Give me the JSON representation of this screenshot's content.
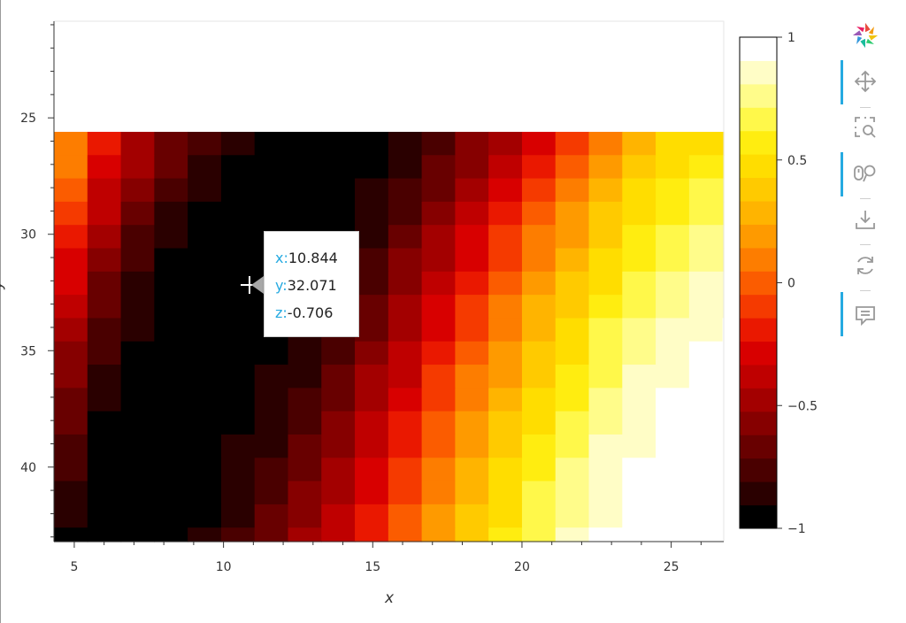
{
  "chart_data": {
    "type": "heatmap",
    "title": "",
    "xlabel": "x",
    "ylabel": "y",
    "x_ticks": [
      5,
      10,
      15,
      20,
      25
    ],
    "y_ticks": [
      25,
      30,
      35,
      40
    ],
    "xlim": [
      4.32,
      26.76
    ],
    "ylim": [
      20.85,
      43.2
    ],
    "x_start": 4.32,
    "x_step": 1.12,
    "y_start": 25.6,
    "y_step": 1,
    "z_range": [
      -1,
      1
    ],
    "colorbar_ticks": [
      "1",
      "0.5",
      "0",
      "−0.5",
      "−1"
    ],
    "colorbar_tick_values": [
      1,
      0.5,
      0,
      -0.5,
      -1
    ],
    "colorbar_levels": 21,
    "colormap": [
      "#000000",
      "#2a0000",
      "#4a0000",
      "#680000",
      "#860000",
      "#a30000",
      "#bf0000",
      "#d80000",
      "#ea1800",
      "#f53a00",
      "#fb5c00",
      "#fd7d00",
      "#fe9a00",
      "#ffb400",
      "#ffca00",
      "#ffdd00",
      "#ffed10",
      "#fff84a",
      "#fffc8a",
      "#fffdc6",
      "#ffffff"
    ],
    "z_rows": [
      [
        0.13,
        -0.15,
        -0.44,
        -0.62,
        -0.8,
        -0.9,
        -0.98,
        -1.0,
        -1.0,
        -0.97,
        -0.88,
        -0.76,
        -0.61,
        -0.44,
        -0.25,
        -0.05,
        0.13,
        0.3,
        0.43,
        0.5,
        0.5
      ],
      [
        0.05,
        -0.25,
        -0.52,
        -0.7,
        -0.85,
        -0.94,
        -1.0,
        -1.0,
        -1.0,
        -0.94,
        -0.85,
        -0.7,
        -0.54,
        -0.36,
        -0.17,
        0.02,
        0.2,
        0.36,
        0.49,
        0.56,
        0.57
      ],
      [
        -0.03,
        -0.34,
        -0.6,
        -0.77,
        -0.9,
        -0.98,
        -1.0,
        -1.0,
        -0.98,
        -0.9,
        -0.79,
        -0.63,
        -0.47,
        -0.28,
        -0.09,
        0.1,
        0.27,
        0.43,
        0.55,
        0.62,
        0.64
      ],
      [
        -0.1,
        -0.42,
        -0.66,
        -0.82,
        -0.94,
        -1.0,
        -1.0,
        -1.0,
        -0.95,
        -0.86,
        -0.73,
        -0.57,
        -0.4,
        -0.21,
        -0.02,
        0.17,
        0.34,
        0.49,
        0.6,
        0.67,
        0.69
      ],
      [
        -0.18,
        -0.5,
        -0.72,
        -0.87,
        -0.97,
        -1.0,
        -1.0,
        -0.99,
        -0.92,
        -0.82,
        -0.67,
        -0.5,
        -0.33,
        -0.14,
        0.05,
        0.23,
        0.4,
        0.55,
        0.65,
        0.72,
        0.74
      ],
      [
        -0.26,
        -0.57,
        -0.77,
        -0.91,
        -0.99,
        -1.0,
        -1.0,
        -0.97,
        -0.89,
        -0.77,
        -0.61,
        -0.44,
        -0.26,
        -0.07,
        0.12,
        0.3,
        0.46,
        0.6,
        0.7,
        0.77,
        0.79
      ],
      [
        -0.33,
        -0.63,
        -0.82,
        -0.94,
        -1.0,
        -1.0,
        -0.99,
        -0.94,
        -0.85,
        -0.72,
        -0.56,
        -0.38,
        -0.19,
        0.0,
        0.18,
        0.36,
        0.52,
        0.65,
        0.75,
        0.81,
        0.84
      ],
      [
        -0.4,
        -0.69,
        -0.86,
        -0.97,
        -1.0,
        -1.0,
        -0.97,
        -0.91,
        -0.81,
        -0.67,
        -0.5,
        -0.32,
        -0.13,
        0.06,
        0.24,
        0.42,
        0.57,
        0.69,
        0.79,
        0.85,
        0.88
      ],
      [
        -0.47,
        -0.74,
        -0.9,
        -0.99,
        -1.0,
        -1.0,
        -0.95,
        -0.88,
        -0.77,
        -0.62,
        -0.45,
        -0.26,
        -0.07,
        0.12,
        0.3,
        0.47,
        0.62,
        0.74,
        0.83,
        0.88,
        0.92
      ],
      [
        -0.54,
        -0.79,
        -0.94,
        -1.0,
        -1.0,
        -0.99,
        -0.93,
        -0.85,
        -0.73,
        -0.57,
        -0.39,
        -0.2,
        -0.01,
        0.18,
        0.36,
        0.52,
        0.66,
        0.78,
        0.86,
        0.92,
        0.95
      ],
      [
        -0.6,
        -0.83,
        -0.96,
        -1.0,
        -1.0,
        -0.97,
        -0.9,
        -0.81,
        -0.68,
        -0.52,
        -0.34,
        -0.14,
        0.05,
        0.23,
        0.41,
        0.57,
        0.7,
        0.81,
        0.89,
        0.94,
        0.97
      ],
      [
        -0.65,
        -0.87,
        -0.99,
        -1.0,
        -1.0,
        -0.95,
        -0.87,
        -0.77,
        -0.63,
        -0.47,
        -0.28,
        -0.09,
        0.1,
        0.29,
        0.46,
        0.61,
        0.74,
        0.84,
        0.92,
        0.97,
        0.99
      ],
      [
        -0.7,
        -0.91,
        -1.0,
        -1.0,
        -0.99,
        -0.92,
        -0.84,
        -0.73,
        -0.59,
        -0.42,
        -0.23,
        -0.04,
        0.15,
        0.34,
        0.5,
        0.65,
        0.78,
        0.87,
        0.94,
        0.98,
        1.0
      ],
      [
        -0.75,
        -0.94,
        -1.0,
        -1.0,
        -0.97,
        -0.9,
        -0.81,
        -0.69,
        -0.54,
        -0.37,
        -0.18,
        0.01,
        0.2,
        0.38,
        0.55,
        0.69,
        0.81,
        0.9,
        0.96,
        1.0,
        1.0
      ],
      [
        -0.8,
        -0.97,
        -1.0,
        -1.0,
        -0.95,
        -0.87,
        -0.77,
        -0.65,
        -0.5,
        -0.32,
        -0.13,
        0.06,
        0.25,
        0.43,
        0.59,
        0.73,
        0.84,
        0.92,
        0.98,
        1.0,
        1.0
      ],
      [
        -0.84,
        -0.99,
        -1.0,
        -1.0,
        -0.93,
        -0.85,
        -0.74,
        -0.61,
        -0.45,
        -0.27,
        -0.08,
        0.11,
        0.3,
        0.47,
        0.63,
        0.76,
        0.87,
        0.95,
        0.99,
        1.0,
        1.0
      ],
      [
        -0.88,
        -1.0,
        -1.0,
        -0.99,
        -0.91,
        -0.82,
        -0.7,
        -0.56,
        -0.41,
        -0.23,
        -0.03,
        0.16,
        0.34,
        0.51,
        0.66,
        0.79,
        0.89,
        0.96,
        1.0,
        1.0,
        1.0
      ],
      [
        -0.91,
        -1.0,
        -1.0,
        -0.97,
        -0.89,
        -0.79,
        -0.67,
        -0.52,
        -0.36,
        -0.18,
        0.01,
        0.2,
        0.38,
        0.55,
        0.7,
        0.82,
        0.91,
        0.98,
        1.0,
        1.0,
        1.0
      ]
    ]
  },
  "tooltip": {
    "x_key": "x:",
    "x_val": "10.844",
    "y_key": "y:",
    "y_val": "32.071",
    "z_key": "z:",
    "z_val": "-0.706"
  },
  "toolbar": {
    "tools": [
      "bokeh-logo-icon",
      "pan-icon",
      "box-zoom-icon",
      "wheel-zoom-icon",
      "save-icon",
      "reset-icon",
      "hover-icon"
    ],
    "accent": "#26aae1"
  }
}
